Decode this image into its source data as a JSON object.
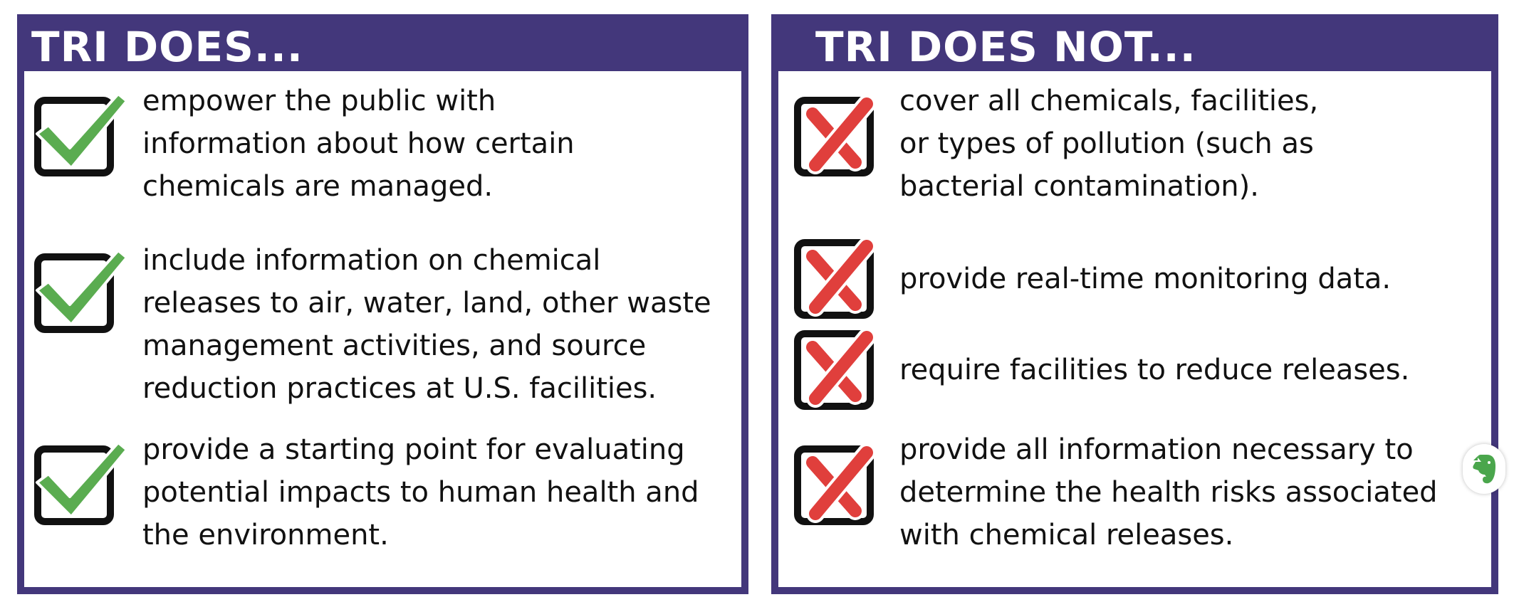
{
  "colors": {
    "frame": "#43377b",
    "check": "#5aac50",
    "cross": "#e03f3c",
    "box": "#111111",
    "evernote": "#4aa64c"
  },
  "does": {
    "title": "TRI DOES...",
    "items": [
      {
        "icon": "check-icon",
        "text": "empower the public with\ninformation about how certain\nchemicals are managed."
      },
      {
        "icon": "check-icon",
        "text": "include information on chemical\nreleases to air, water, land, other waste\nmanagement activities, and source\nreduction practices at U.S. facilities."
      },
      {
        "icon": "check-icon",
        "text": "provide a starting point for evaluating\npotential impacts to human health and\nthe environment."
      }
    ]
  },
  "does_not": {
    "title": "TRI DOES NOT...",
    "items": [
      {
        "icon": "x-icon",
        "text": "cover all chemicals, facilities,\nor types of pollution (such as\nbacterial contamination)."
      },
      {
        "icon": "x-icon",
        "text": "provide real-time monitoring data."
      },
      {
        "icon": "x-icon",
        "text": "require facilities to reduce releases."
      },
      {
        "icon": "x-icon",
        "text": "provide all information necessary to\ndetermine the health risks associated\nwith chemical releases."
      }
    ]
  },
  "overlay": {
    "icon": "evernote-elephant-icon"
  }
}
